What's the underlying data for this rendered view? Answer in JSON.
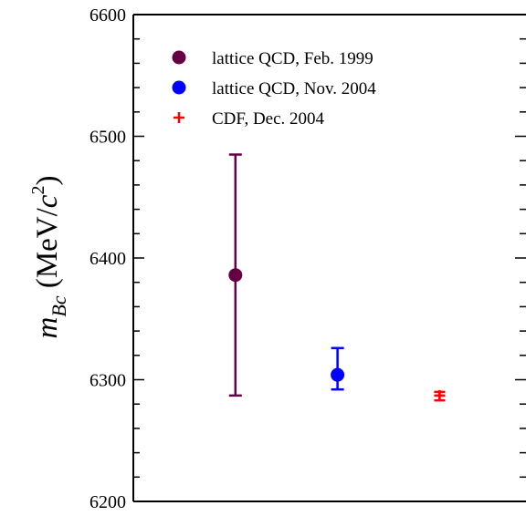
{
  "chart_data": {
    "type": "scatter",
    "ylabel": {
      "main": "m",
      "subscript": "Bc",
      "unit_open": " (MeV/",
      "unit_c": "c",
      "unit_sup": "2",
      "unit_close": ")"
    },
    "ylim": [
      6200,
      6600
    ],
    "y_major_ticks": [
      6200,
      6300,
      6400,
      6500,
      6600
    ],
    "y_tick_labels": [
      "6200",
      "6300",
      "6400",
      "6500",
      "6600"
    ],
    "y_minor_step": 20,
    "x_ticks_shown": false,
    "grid": false,
    "legend_position": "top-left",
    "series": [
      {
        "name": "lattice QCD, Feb. 1999",
        "color": "#660044",
        "marker": "circle",
        "x_position": 0.26,
        "y": 6386,
        "err_low": 6287,
        "err_high": 6485
      },
      {
        "name": "lattice QCD, Nov. 2004",
        "color": "#0000ff",
        "marker": "circle",
        "x_position": 0.52,
        "y": 6304,
        "err_low": 6292,
        "err_high": 6326
      },
      {
        "name": "CDF, Dec. 2004",
        "color": "#ff0000",
        "marker": "plus",
        "x_position": 0.78,
        "y": 6287,
        "err_low": 6283,
        "err_high": 6290
      }
    ]
  }
}
